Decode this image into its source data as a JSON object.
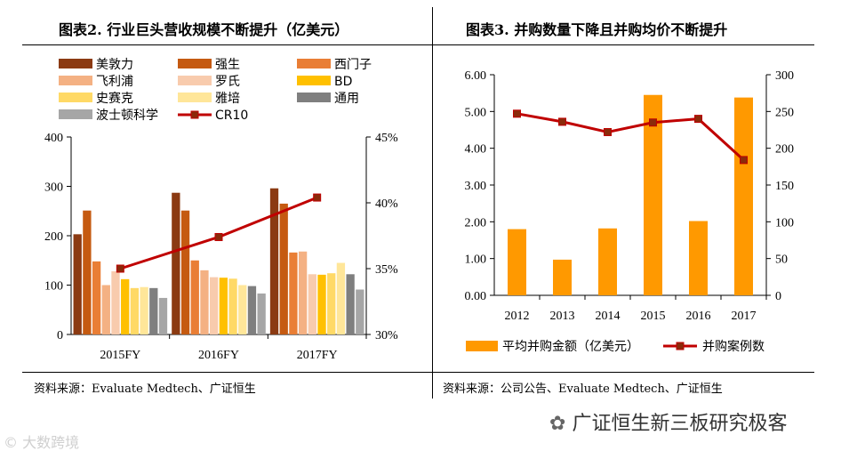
{
  "left_chart": {
    "title": "图表2. 行业巨头营收规模不断提升（亿美元）",
    "source": "资料来源：Evaluate Medtech、广证恒生",
    "chart_data": {
      "type": "bar",
      "categories": [
        "2015FY",
        "2016FY",
        "2017FY"
      ],
      "series": [
        {
          "name": "美敦力",
          "color": "#8B3A12",
          "values": [
            203,
            287,
            296
          ]
        },
        {
          "name": "强生",
          "color": "#C55A11",
          "values": [
            251,
            251,
            265
          ]
        },
        {
          "name": "西门子",
          "color": "#E97E35",
          "values": [
            148,
            150,
            166
          ]
        },
        {
          "name": "飞利浦",
          "color": "#F4B183",
          "values": [
            100,
            130,
            168
          ]
        },
        {
          "name": "罗氏",
          "color": "#F8CBAD",
          "values": [
            128,
            116,
            122
          ]
        },
        {
          "name": "BD",
          "color": "#FFC000",
          "values": [
            112,
            115,
            121
          ]
        },
        {
          "name": "史赛克",
          "color": "#FFD966",
          "values": [
            94,
            113,
            124
          ]
        },
        {
          "name": "雅培",
          "color": "#FFE699",
          "values": [
            96,
            100,
            145
          ]
        },
        {
          "name": "通用",
          "color": "#7F7F7F",
          "values": [
            94,
            98,
            122
          ]
        },
        {
          "name": "波士顿科学",
          "color": "#A6A6A6",
          "values": [
            74,
            83,
            91
          ]
        }
      ],
      "line_series": {
        "name": "CR10",
        "color": "#C00000",
        "axis": "right",
        "values": [
          35.0,
          37.4,
          40.4
        ]
      },
      "y_left": {
        "min": 0,
        "max": 400,
        "ticks": [
          0,
          100,
          200,
          300,
          400
        ]
      },
      "y_right": {
        "min": 30,
        "max": 45,
        "ticks": [
          "30%",
          "35%",
          "40%",
          "45%"
        ]
      }
    }
  },
  "right_chart": {
    "title": "图表3. 并购数量下降且并购均价不断提升",
    "source": "资料来源：公司公告、Evaluate Medtech、广证恒生",
    "chart_data": {
      "type": "bar",
      "categories": [
        "2012",
        "2013",
        "2014",
        "2015",
        "2016",
        "2017"
      ],
      "series": [
        {
          "name": "平均并购金额（亿美元）",
          "color": "#FF9900",
          "values": [
            1.8,
            0.97,
            1.82,
            5.45,
            2.02,
            5.38
          ]
        }
      ],
      "line_series": {
        "name": "并购案例数",
        "color": "#C00000",
        "axis": "right",
        "values": [
          247,
          236,
          222,
          235,
          240,
          184
        ]
      },
      "y_left": {
        "min": 0,
        "max": 6,
        "ticks": [
          "0.00",
          "1.00",
          "2.00",
          "3.00",
          "4.00",
          "5.00",
          "6.00"
        ]
      },
      "y_right": {
        "min": 0,
        "max": 300,
        "ticks": [
          "0",
          "50",
          "100",
          "150",
          "200",
          "250",
          "300"
        ]
      }
    }
  },
  "watermark": {
    "account": "广证恒生新三板研究极客",
    "site": "大数跨境"
  }
}
